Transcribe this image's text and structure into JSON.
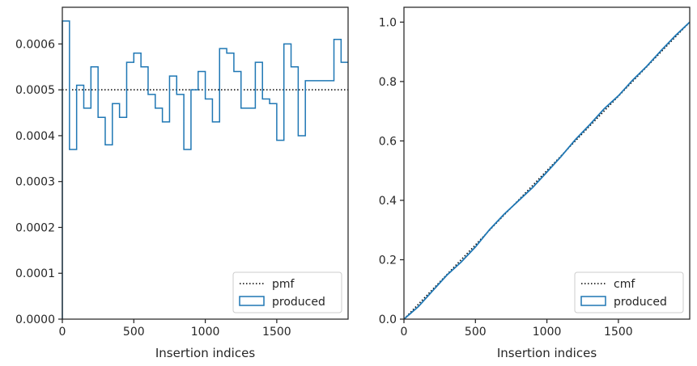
{
  "chart_data": [
    {
      "type": "step",
      "xlabel": "Insertion indices",
      "ylabel": "",
      "xlim": [
        0,
        1999
      ],
      "ylim": [
        0,
        0.00068
      ],
      "xticks": [
        0,
        500,
        1000,
        1500
      ],
      "xtick_labels": [
        "0",
        "500",
        "1000",
        "1500"
      ],
      "yticks": [
        0,
        0.0001,
        0.0002,
        0.0003,
        0.0004,
        0.0005,
        0.0006
      ],
      "ytick_labels": [
        "0.0000",
        "0.0001",
        "0.0002",
        "0.0003",
        "0.0004",
        "0.0005",
        "0.0006"
      ],
      "legend_position": "lower-right",
      "series": [
        {
          "name": "pmf",
          "style": "dotted",
          "color": "#000000",
          "x": [
            0,
            1999
          ],
          "y": [
            0.0005,
            0.0005
          ]
        },
        {
          "name": "produced",
          "style": "step-histogram",
          "color": "#1f77b4",
          "bin_edges": [
            0,
            50,
            100,
            150,
            200,
            250,
            300,
            350,
            400,
            450,
            500,
            550,
            600,
            650,
            700,
            750,
            800,
            850,
            900,
            950,
            1000,
            1050,
            1100,
            1150,
            1200,
            1250,
            1300,
            1350,
            1400,
            1450,
            1500,
            1550,
            1600,
            1650,
            1700,
            1750,
            1800,
            1850,
            1900,
            1950,
            1999
          ],
          "values": [
            0.00065,
            0.00037,
            0.00051,
            0.00046,
            0.00055,
            0.00044,
            0.00038,
            0.00047,
            0.00044,
            0.00056,
            0.00058,
            0.00055,
            0.00049,
            0.00046,
            0.00043,
            0.00053,
            0.00049,
            0.00037,
            0.0005,
            0.00054,
            0.00048,
            0.00043,
            0.00059,
            0.00058,
            0.00054,
            0.00046,
            0.00046,
            0.00056,
            0.00048,
            0.00047,
            0.00039,
            0.0006,
            0.00055,
            0.0004,
            0.00052,
            0.00052,
            0.00052,
            0.00052,
            0.00061,
            0.00056
          ]
        }
      ]
    },
    {
      "type": "line",
      "xlabel": "Insertion indices",
      "ylabel": "",
      "xlim": [
        0,
        1999
      ],
      "ylim": [
        0,
        1.05
      ],
      "xticks": [
        0,
        500,
        1000,
        1500
      ],
      "xtick_labels": [
        "0",
        "500",
        "1000",
        "1500"
      ],
      "yticks": [
        0,
        0.2,
        0.4,
        0.6,
        0.8,
        1.0
      ],
      "ytick_labels": [
        "0.0",
        "0.2",
        "0.4",
        "0.6",
        "0.8",
        "1.0"
      ],
      "legend_position": "lower-right",
      "series": [
        {
          "name": "cmf",
          "style": "dotted",
          "color": "#000000",
          "x": [
            0,
            1999
          ],
          "y": [
            0,
            1.0
          ]
        },
        {
          "name": "produced",
          "style": "line",
          "color": "#1f77b4",
          "x": [
            0,
            100,
            200,
            300,
            400,
            500,
            600,
            700,
            800,
            900,
            1000,
            1100,
            1200,
            1300,
            1400,
            1500,
            1600,
            1700,
            1800,
            1900,
            1999
          ],
          "y": [
            0,
            0.042,
            0.095,
            0.148,
            0.192,
            0.243,
            0.302,
            0.353,
            0.398,
            0.443,
            0.495,
            0.548,
            0.605,
            0.655,
            0.708,
            0.752,
            0.805,
            0.852,
            0.905,
            0.955,
            1.0
          ]
        }
      ]
    }
  ]
}
